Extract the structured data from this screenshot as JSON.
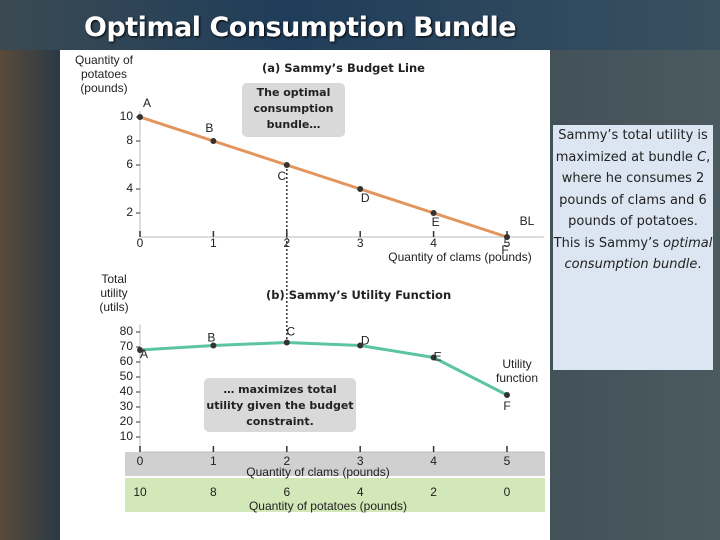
{
  "title": "Optimal Consumption Bundle",
  "chart_data": [
    {
      "type": "line",
      "title": "(a)   Sammy’s Budget Line",
      "y_label": "Quantity of potatoes (pounds)",
      "x_label": "Quantity of clams (pounds)",
      "x": [
        0,
        1,
        2,
        3,
        4,
        5
      ],
      "series": [
        {
          "name": "BL",
          "color": "#e2955c",
          "values": [
            10,
            8,
            6,
            4,
            2,
            0
          ]
        }
      ],
      "point_labels": [
        "A",
        "B",
        "C",
        "D",
        "E",
        "F"
      ],
      "xlim": [
        0,
        5.5
      ],
      "xticks": [
        0,
        1,
        2,
        3,
        4,
        5
      ],
      "ylim": [
        0,
        10.5
      ],
      "yticks": [
        2,
        4,
        6,
        8,
        10
      ],
      "annotation": "The optimal consumption bundle…"
    },
    {
      "type": "line",
      "title": "(b)   Sammy’s Utility Function",
      "y_label": "Total utility (utils)",
      "x_label": "Quantity of clams (pounds)",
      "x2_label": "Quantity of potatoes (pounds)",
      "x": [
        0,
        1,
        2,
        3,
        4,
        5
      ],
      "series": [
        {
          "name": "Utility function",
          "color": "#5cc4a3",
          "values": [
            68,
            71,
            73,
            71,
            63,
            38
          ]
        }
      ],
      "point_labels": [
        "A",
        "B",
        "C",
        "D",
        "E",
        "F"
      ],
      "xlim": [
        0,
        5.5
      ],
      "xticks": [
        0,
        1,
        2,
        3,
        4,
        5
      ],
      "x2ticks": [
        10,
        8,
        6,
        4,
        2,
        0
      ],
      "ylim": [
        0,
        85
      ],
      "yticks": [
        10,
        20,
        30,
        40,
        50,
        60,
        70,
        80
      ],
      "annotation": "… maximizes total utility given the budget constraint."
    }
  ],
  "sidebar": [
    [
      "Sammy’s total utility is maximized at bundle ",
      "C",
      ", where he consumes 2 pounds of clams and 6 pounds of potatoes."
    ],
    [
      "This is Sammy’s ",
      "optimal consumption bundle",
      "."
    ]
  ]
}
